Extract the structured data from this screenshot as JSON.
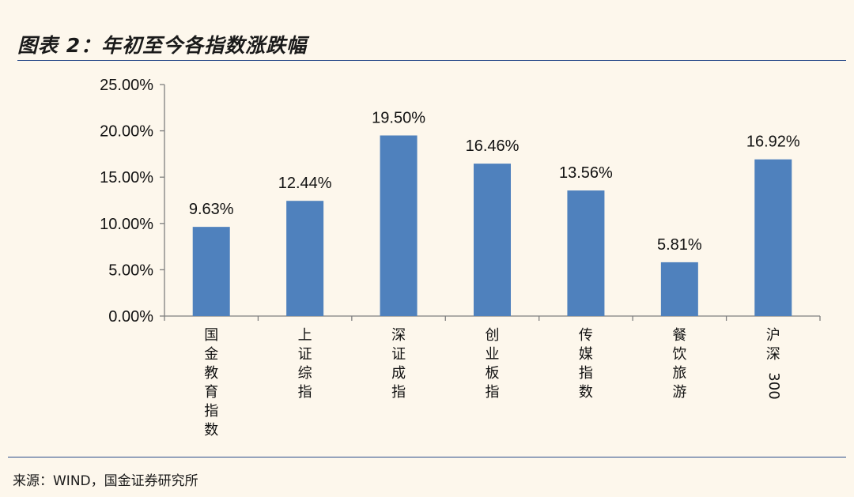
{
  "header": {
    "title": "图表 2：年初至今各指数涨跌幅"
  },
  "footer": {
    "source": "来源：WIND，国金证券研究所"
  },
  "chart_data": {
    "type": "bar",
    "title": "图表 2：年初至今各指数涨跌幅",
    "categories": [
      "国金教育指数",
      "上证综指",
      "深证成指",
      "创业板指",
      "传媒指数",
      "餐饮旅游",
      "沪深300"
    ],
    "values": [
      9.63,
      12.44,
      19.5,
      16.46,
      13.56,
      5.81,
      16.92
    ],
    "value_labels": [
      "9.63%",
      "12.44%",
      "19.50%",
      "16.46%",
      "13.56%",
      "5.81%",
      "16.92%"
    ],
    "yticks": [
      "0.00%",
      "5.00%",
      "10.00%",
      "15.00%",
      "20.00%",
      "25.00%"
    ],
    "ylim": [
      0,
      25
    ],
    "xlabel": "",
    "ylabel": "",
    "grid": false,
    "legend": "none",
    "bar_color": "#4f81bd",
    "axis_color": "#7f7f7f"
  }
}
